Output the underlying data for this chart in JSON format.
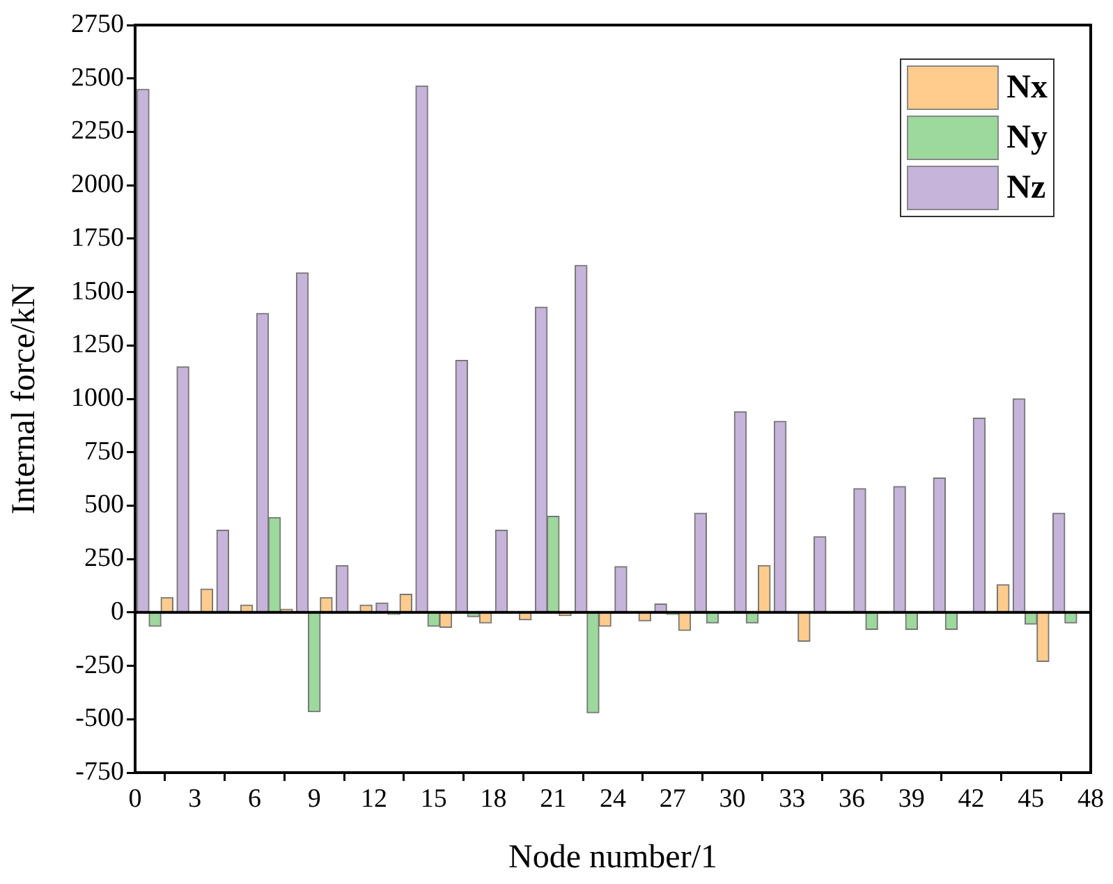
{
  "chart_data": {
    "type": "bar",
    "xlabel": "Node number/1",
    "ylabel": "Internal force/kN",
    "xlim": [
      0,
      48
    ],
    "xticks": [
      0,
      3,
      6,
      9,
      12,
      15,
      18,
      21,
      24,
      27,
      30,
      33,
      36,
      39,
      42,
      45,
      48
    ],
    "ylim": [
      -750,
      2750
    ],
    "yticks": [
      -750,
      -500,
      -250,
      0,
      250,
      500,
      750,
      1000,
      1250,
      1500,
      1750,
      2000,
      2250,
      2500,
      2750
    ],
    "grid": false,
    "legend": "top right",
    "ref_lines": [
      {
        "axis": "y",
        "value": 0,
        "color": "#000000"
      }
    ],
    "series": [
      {
        "name": "Nx",
        "color": "#ffcc8e",
        "x": [
          1.6,
          3.6,
          5.6,
          7.6,
          9.6,
          11.6,
          13.6,
          15.6,
          17.6,
          19.6,
          21.6,
          23.6,
          25.6,
          27.6,
          29.6,
          31.6,
          33.6,
          35.6,
          37.6,
          39.6,
          41.6,
          43.6,
          45.6,
          47.6
        ],
        "values": [
          70,
          110,
          35,
          15,
          70,
          35,
          85,
          -70,
          -50,
          -35,
          -15,
          -65,
          -40,
          -85,
          0,
          220,
          -135,
          0,
          0,
          0,
          0,
          130,
          -230,
          0
        ]
      },
      {
        "name": "Ny",
        "color": "#9dd89d",
        "x": [
          1,
          3,
          5,
          7,
          9,
          11,
          13,
          15,
          17,
          19,
          21,
          23,
          25,
          27,
          29,
          31,
          33,
          35,
          37,
          39,
          41,
          43,
          45,
          47
        ],
        "values": [
          -65,
          null,
          0,
          445,
          -465,
          0,
          -10,
          -65,
          -20,
          0,
          450,
          -470,
          0,
          -10,
          -50,
          -50,
          0,
          0,
          -80,
          -80,
          -80,
          0,
          -55,
          -50
        ]
      },
      {
        "name": "Nz",
        "color": "#c6b4da",
        "x": [
          0.4,
          2.4,
          4.4,
          6.4,
          8.4,
          10.4,
          12.4,
          14.4,
          16.4,
          18.4,
          20.4,
          22.4,
          24.4,
          26.4,
          28.4,
          30.4,
          32.4,
          34.4,
          36.4,
          38.4,
          40.4,
          42.4,
          44.4,
          46.4
        ],
        "values": [
          2450,
          1150,
          385,
          1400,
          1590,
          220,
          45,
          2465,
          1180,
          385,
          1430,
          1625,
          215,
          40,
          465,
          940,
          895,
          355,
          580,
          590,
          630,
          910,
          1000,
          465
        ]
      }
    ]
  }
}
